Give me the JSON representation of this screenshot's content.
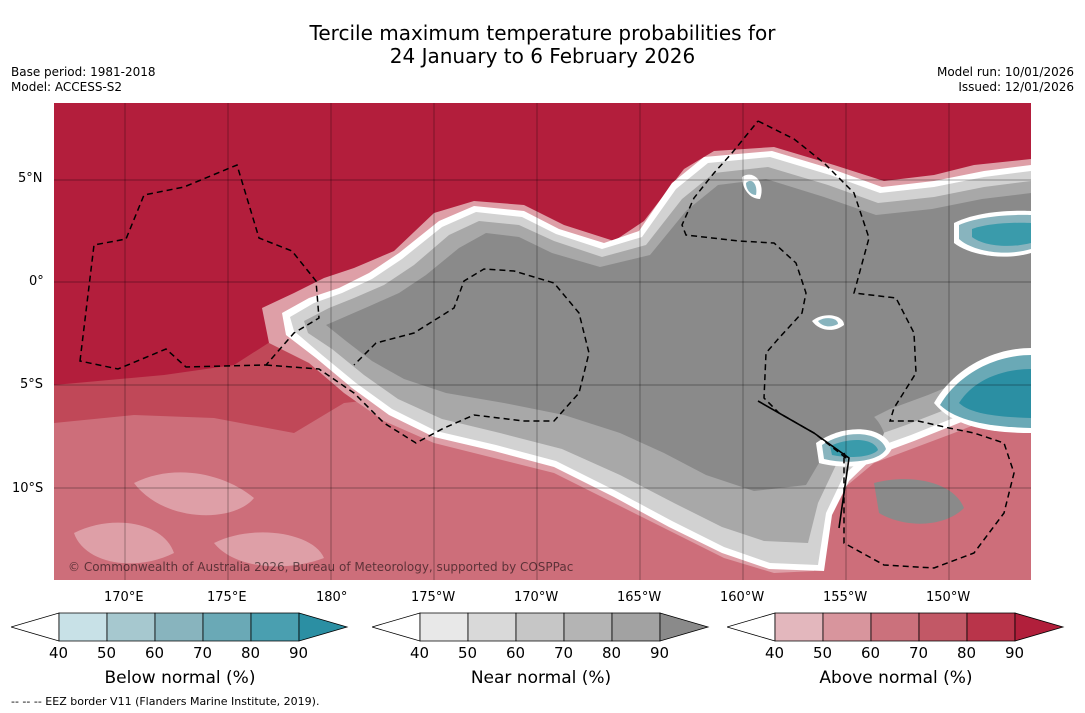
{
  "title": {
    "line1": "Tercile maximum temperature probabilities for",
    "line2": "24 January to 6 February 2026"
  },
  "meta": {
    "base_period": "Base period: 1981-2018",
    "model": "Model: ACCESS-S2",
    "model_run": "Model run: 10/01/2026",
    "issued": "Issued: 12/01/2026"
  },
  "map": {
    "copyright": "© Commonwealth of Australia 2026, Bureau of Meteorology, supported by COSPPac",
    "lat_labels": [
      "5°N",
      "0°",
      "5°S",
      "10°S"
    ],
    "lon_labels": [
      "170°E",
      "175°E",
      "180°",
      "175°W",
      "170°W",
      "165°W",
      "160°W",
      "155°W",
      "150°W"
    ]
  },
  "colorbars": [
    {
      "title": "Below normal (%)",
      "ticks": [
        "40",
        "50",
        "60",
        "70",
        "80",
        "90"
      ],
      "colors": [
        "#ffffff",
        "#c8e1e7",
        "#a6c8cf",
        "#88b4be",
        "#6aa9b6",
        "#4a9fb0",
        "#2b8fa3"
      ]
    },
    {
      "title": "Near normal (%)",
      "ticks": [
        "40",
        "50",
        "60",
        "70",
        "80",
        "90"
      ],
      "colors": [
        "#ffffff",
        "#e8e8e8",
        "#d9d9d9",
        "#c6c6c6",
        "#b4b4b4",
        "#a2a2a2",
        "#8a8a8a"
      ]
    },
    {
      "title": "Above normal (%)",
      "ticks": [
        "40",
        "50",
        "60",
        "70",
        "80",
        "90"
      ],
      "colors": [
        "#ffffff",
        "#e3b7bd",
        "#d8959d",
        "#cb717c",
        "#c25866",
        "#b9344a",
        "#b11f3b"
      ]
    }
  ],
  "colors": {
    "above_max": "#b31e3c",
    "above_high": "#c04858",
    "above_mid": "#cd6e7a",
    "above_low": "#de9fa7",
    "near_dark": "#8a8a8a",
    "near_mid": "#a8a8a8",
    "near_light": "#d2d2d2",
    "below": "#3a9bab"
  },
  "footer": "--  --  -- EEZ border V11 (Flanders Marine Institute, 2019)."
}
